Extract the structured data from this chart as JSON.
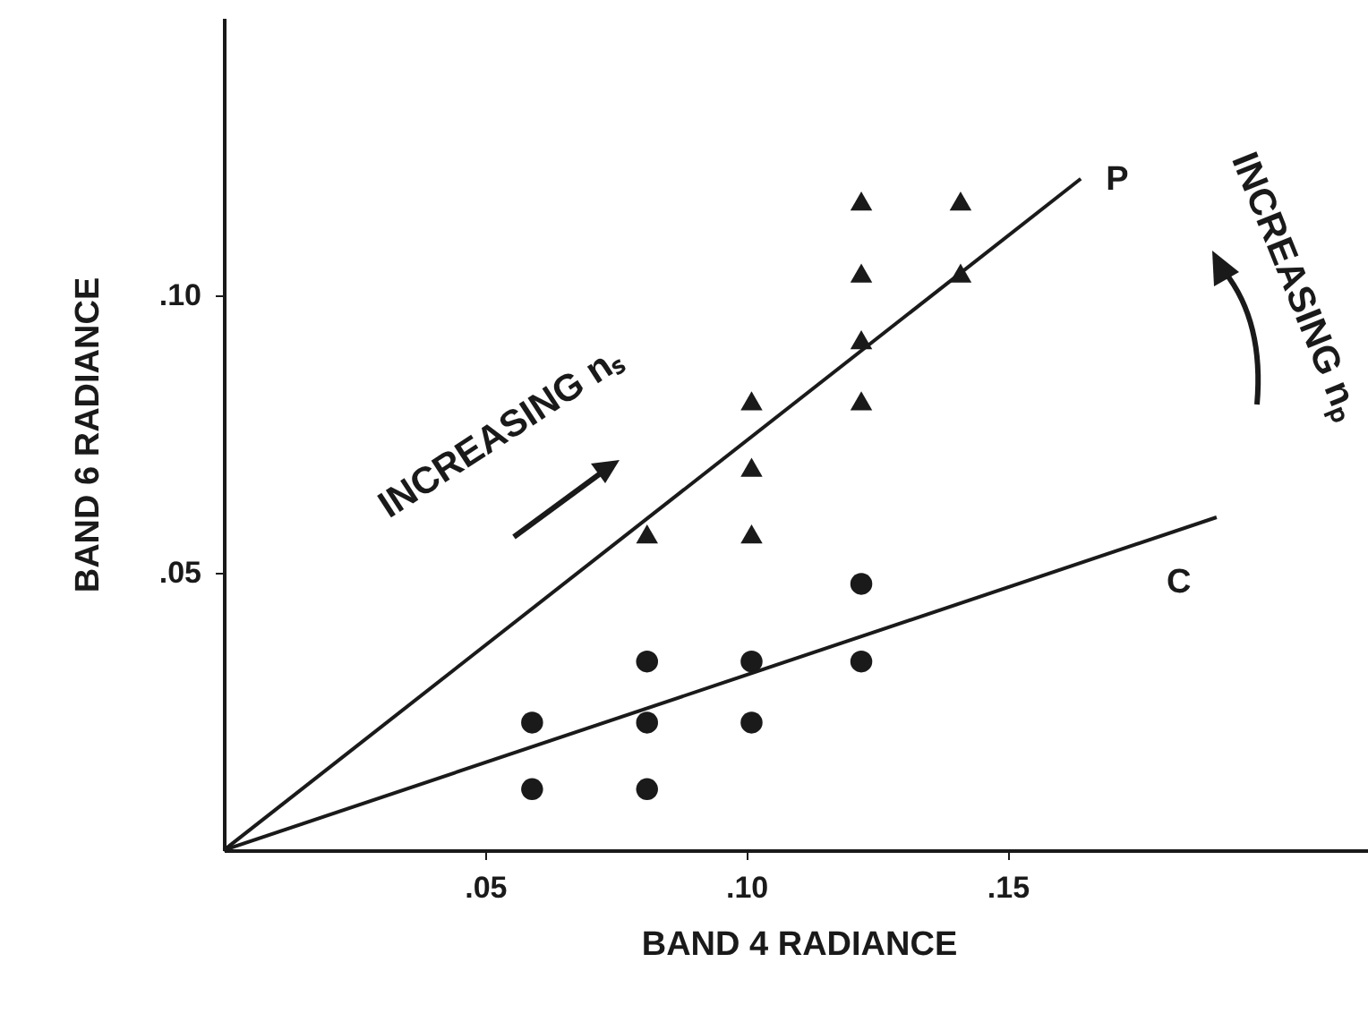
{
  "chart_data": {
    "type": "scatter",
    "xlabel": "BAND 4 RADIANCE",
    "ylabel": "BAND 6 RADIANCE",
    "xlim": [
      0,
      0.22
    ],
    "ylim": [
      0,
      0.15
    ],
    "xticks": [
      {
        "value": 0.05,
        "label": ".05"
      },
      {
        "value": 0.1,
        "label": ".10"
      },
      {
        "value": 0.15,
        "label": ".15"
      }
    ],
    "yticks": [
      {
        "value": 0.05,
        "label": ".05"
      },
      {
        "value": 0.1,
        "label": ".10"
      }
    ],
    "grid": false,
    "series": [
      {
        "type": "scatter",
        "marker": "circle",
        "color": "#1a1a1a",
        "x": [
          0.059,
          0.059,
          0.081,
          0.081,
          0.081,
          0.101,
          0.101,
          0.122,
          0.122
        ],
        "values": [
          0.023,
          0.011,
          0.011,
          0.023,
          0.034,
          0.023,
          0.034,
          0.034,
          0.048
        ]
      },
      {
        "type": "scatter",
        "marker": "triangle",
        "color": "#1a1a1a",
        "x": [
          0.081,
          0.101,
          0.101,
          0.101,
          0.122,
          0.122,
          0.122,
          0.122,
          0.141,
          0.141
        ],
        "values": [
          0.057,
          0.057,
          0.069,
          0.081,
          0.081,
          0.092,
          0.104,
          0.117,
          0.104,
          0.117
        ]
      },
      {
        "type": "line",
        "name": "P",
        "color": "#1a1a1a",
        "x": [
          0,
          0.164
        ],
        "values": [
          0,
          0.121
        ]
      },
      {
        "type": "line",
        "name": "C",
        "color": "#1a1a1a",
        "x": [
          0,
          0.19
        ],
        "values": [
          0,
          0.06
        ]
      }
    ],
    "annotations": [
      "INCREASING nₛ",
      "INCREASING nₚ"
    ]
  }
}
